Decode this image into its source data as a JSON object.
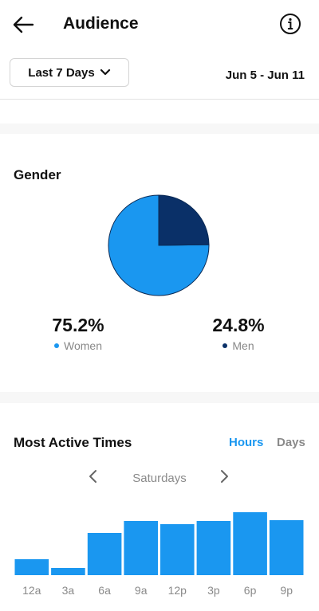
{
  "header": {
    "title": "Audience",
    "back_icon": "arrow-left-icon",
    "info_icon": "info-circle-icon"
  },
  "filter": {
    "range_label": "Last 7 Days",
    "range_icon": "chevron-down-icon",
    "date_range": "Jun 5 - Jun 11"
  },
  "gender": {
    "title": "Gender",
    "women": {
      "value": "75.2%",
      "label": "Women",
      "color": "#1a97f0"
    },
    "men": {
      "value": "24.8%",
      "label": "Men",
      "color": "#0a3068"
    }
  },
  "active_times": {
    "title": "Most Active Times",
    "tabs": {
      "hours": "Hours",
      "days": "Days"
    },
    "selected_tab": "Hours",
    "day": "Saturdays",
    "prev_icon": "chevron-left-icon",
    "next_icon": "chevron-right-icon"
  },
  "colors": {
    "accent": "#1a97f0",
    "dark_navy": "#0a3068",
    "muted_text": "#888888"
  },
  "chart_data": [
    {
      "type": "pie",
      "categories": [
        "Women",
        "Men"
      ],
      "values": [
        75.2,
        24.8
      ]
    },
    {
      "type": "bar",
      "categories": [
        "12a",
        "3a",
        "6a",
        "9a",
        "12p",
        "3p",
        "6p",
        "9p"
      ],
      "values": [
        20,
        9,
        53,
        68,
        64,
        68,
        79,
        69
      ],
      "ylim": [
        0,
        100
      ],
      "grid": false
    }
  ]
}
